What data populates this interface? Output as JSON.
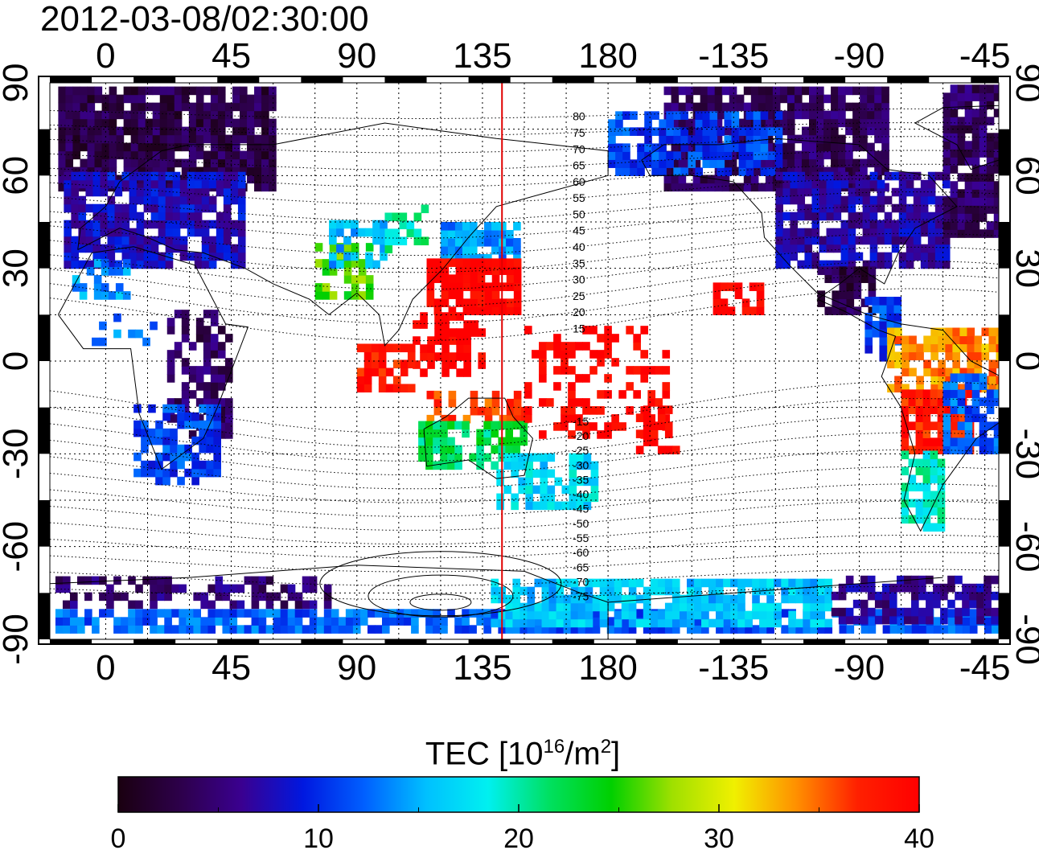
{
  "map": {
    "timestamp": "2012-03-08/02:30:00",
    "top_lon_labels": [
      "0",
      "45",
      "90",
      "135",
      "180",
      "-135",
      "-90",
      "-45"
    ],
    "bottom_lon_labels": [
      "0",
      "45",
      "90",
      "135",
      "180",
      "-135",
      "-90",
      "-45"
    ],
    "left_lat_labels": [
      "90",
      "60",
      "30",
      "0",
      "-30",
      "-60",
      "-90"
    ],
    "right_lat_labels": [
      "90",
      "60",
      "30",
      "0",
      "-30",
      "-60",
      "-90"
    ],
    "magnetic_lat_labels": [
      "80",
      "75",
      "70",
      "65",
      "60",
      "55",
      "50",
      "45",
      "40",
      "35",
      "30",
      "25",
      "20",
      "15",
      "-15",
      "-20",
      "-25",
      "-30",
      "-35",
      "-40",
      "-45",
      "-50",
      "-55",
      "-60",
      "-65",
      "-70",
      "-75"
    ],
    "local_time_meridian_lon": 142,
    "meridian_color": "#e00000",
    "lon_start": -20,
    "lon_end": 320
  },
  "colorbar": {
    "title_main": "TEC  [10",
    "title_exp1": "16",
    "title_mid": "/m",
    "title_exp2": "2",
    "title_end": "]",
    "min": 0,
    "max": 40,
    "tick_labels": [
      "0",
      "10",
      "20",
      "30",
      "40"
    ],
    "stops": [
      "#1a0010",
      "#2d004a",
      "#3a0090",
      "#0018e0",
      "#0060ff",
      "#00c0ff",
      "#00f0f0",
      "#00e060",
      "#00d000",
      "#a0e000",
      "#f0f000",
      "#ff9000",
      "#ff2000",
      "#ff0000"
    ]
  }
}
